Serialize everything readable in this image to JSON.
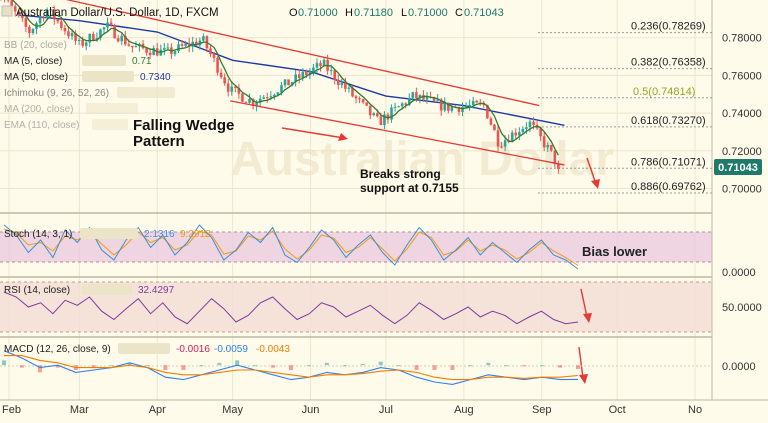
{
  "header": {
    "symbol_title": "Australian Dollar/U.S. Dollar, 1D, FXCM",
    "ohlc": {
      "O": "0.71000",
      "H": "0.71180",
      "L": "0.71000",
      "C": "0.71043"
    },
    "last_price": "0.71043"
  },
  "indicators": [
    {
      "label": "BB (20, close)",
      "value": ""
    },
    {
      "label": "MA (5, close)",
      "value": "0.71"
    },
    {
      "label": "MA (50, close)",
      "value": "0.7340"
    },
    {
      "label": "Ichimoku (9, 26, 52, 26)",
      "value": ""
    },
    {
      "label": "MA (200, close)",
      "value": ""
    },
    {
      "label": "EMA (110, close)",
      "value": ""
    }
  ],
  "annotations": {
    "pattern": [
      "Falling Wedge",
      "Pattern"
    ],
    "breakout": [
      "Breaks strong",
      "support at 0.7155"
    ],
    "bias": "Bias lower"
  },
  "watermark": "Australian Dollar",
  "stoch": {
    "label": "Stoch (14, 3, 1)",
    "k": "2.1316",
    "d": "9.2912",
    "axis": "0.0000"
  },
  "rsi": {
    "label": "RSI (14, close)",
    "value": "32.4297",
    "axis": "50.0000"
  },
  "macd": {
    "label": "MACD (12, 26, close, 9)",
    "hist": "-0.0016",
    "macd": "-0.0059",
    "signal": "-0.0043",
    "axis": "0.0000"
  },
  "colors": {
    "up": "#26a69a",
    "down": "#ef5350",
    "wedge": "#e53935",
    "ma5": "#2e7d32",
    "ma50": "#1e3aa8",
    "stoch_k": "#3b8fd6",
    "stoch_d": "#f39c12",
    "rsi": "#7e3b9e",
    "macd": "#2f80ed",
    "signal": "#f57c00",
    "fib": "#999999"
  },
  "chart_data": [
    {
      "type": "candlestick",
      "title": "Australian Dollar/U.S. Dollar, 1D, FXCM",
      "x_ticks": [
        "Feb",
        "Mar",
        "Apr",
        "May",
        "Jun",
        "Jul",
        "Aug",
        "Sep",
        "Oct",
        "No"
      ],
      "y_ticks": [
        "0.78000",
        "0.76000",
        "0.74000",
        "0.72000",
        "0.70000"
      ],
      "y_tick_values": [
        0.78,
        0.76,
        0.74,
        0.72,
        0.7
      ],
      "ylim": [
        0.687,
        0.8
      ],
      "price_path": [
        {
          "x": "2018-01-26",
          "y": 0.808
        },
        {
          "x": "2018-02-09",
          "y": 0.783
        },
        {
          "x": "2018-02-16",
          "y": 0.795
        },
        {
          "x": "2018-03-01",
          "y": 0.776
        },
        {
          "x": "2018-03-12",
          "y": 0.786
        },
        {
          "x": "2018-03-22",
          "y": 0.775
        },
        {
          "x": "2018-04-05",
          "y": 0.772
        },
        {
          "x": "2018-04-19",
          "y": 0.779
        },
        {
          "x": "2018-04-30",
          "y": 0.752
        },
        {
          "x": "2018-05-09",
          "y": 0.746
        },
        {
          "x": "2018-05-22",
          "y": 0.755
        },
        {
          "x": "2018-06-06",
          "y": 0.766
        },
        {
          "x": "2018-06-15",
          "y": 0.753
        },
        {
          "x": "2018-06-28",
          "y": 0.735
        },
        {
          "x": "2018-07-05",
          "y": 0.742
        },
        {
          "x": "2018-07-12",
          "y": 0.749
        },
        {
          "x": "2018-07-25",
          "y": 0.743
        },
        {
          "x": "2018-08-09",
          "y": 0.744
        },
        {
          "x": "2018-08-15",
          "y": 0.724
        },
        {
          "x": "2018-08-27",
          "y": 0.735
        },
        {
          "x": "2018-09-04",
          "y": 0.72
        },
        {
          "x": "2018-09-08",
          "y": 0.7104
        }
      ],
      "fibonacci": [
        {
          "label": "0.236(0.78269)",
          "value": 0.78269
        },
        {
          "label": "0.382(0.76358)",
          "value": 0.76358
        },
        {
          "label": "0.5(0.74814)",
          "value": 0.74814
        },
        {
          "label": "0.618(0.73270)",
          "value": 0.7327
        },
        {
          "label": "0.786(0.71071)",
          "value": 0.71071
        },
        {
          "label": "0.886(0.69762)",
          "value": 0.69762
        }
      ],
      "wedge_upper": [
        {
          "x": "2018-01-29",
          "y": 0.808
        },
        {
          "x": "2018-08-31",
          "y": 0.744
        }
      ],
      "wedge_lower": [
        {
          "x": "2018-04-30",
          "y": 0.7465
        },
        {
          "x": "2018-09-10",
          "y": 0.7125
        }
      ],
      "ma50_path": [
        {
          "x": "2018-02-05",
          "y": 0.792
        },
        {
          "x": "2018-03-01",
          "y": 0.789
        },
        {
          "x": "2018-04-01",
          "y": 0.783
        },
        {
          "x": "2018-05-01",
          "y": 0.768
        },
        {
          "x": "2018-06-01",
          "y": 0.762
        },
        {
          "x": "2018-07-01",
          "y": 0.749
        },
        {
          "x": "2018-08-01",
          "y": 0.744
        },
        {
          "x": "2018-09-10",
          "y": 0.7335
        }
      ]
    },
    {
      "type": "line",
      "title": "Stoch (14, 3, 1)",
      "y_ticks": [
        "0.0000"
      ],
      "ylim": [
        0,
        100
      ],
      "series": [
        {
          "name": "%K",
          "values": [
            90,
            70,
            35,
            60,
            25,
            80,
            55,
            85,
            40,
            20,
            60,
            85,
            45,
            70,
            30,
            55,
            90,
            65,
            20,
            40,
            75,
            55,
            85,
            30,
            15,
            45,
            80,
            60,
            25,
            50,
            70,
            35,
            10,
            50,
            85,
            60,
            20,
            40,
            65,
            30,
            55,
            35,
            15,
            40,
            60,
            30,
            20,
            2
          ]
        },
        {
          "name": "%D",
          "values": [
            82,
            74,
            50,
            55,
            38,
            68,
            60,
            76,
            52,
            30,
            50,
            76,
            55,
            65,
            40,
            50,
            78,
            70,
            32,
            38,
            68,
            60,
            78,
            42,
            22,
            40,
            70,
            64,
            35,
            45,
            65,
            42,
            18,
            42,
            76,
            65,
            30,
            38,
            60,
            38,
            50,
            40,
            22,
            35,
            55,
            38,
            25,
            9
          ]
        }
      ]
    },
    {
      "type": "line",
      "title": "RSI (14, close)",
      "y_ticks": [
        "50.0000"
      ],
      "ylim": [
        20,
        80
      ],
      "series": [
        {
          "name": "RSI",
          "values": [
            68,
            62,
            50,
            55,
            42,
            58,
            52,
            62,
            45,
            35,
            48,
            60,
            42,
            55,
            38,
            30,
            45,
            60,
            48,
            32,
            40,
            55,
            62,
            48,
            35,
            42,
            55,
            50,
            38,
            45,
            52,
            40,
            30,
            40,
            55,
            46,
            35,
            42,
            50,
            38,
            45,
            40,
            30,
            38,
            45,
            35,
            30,
            32
          ]
        }
      ]
    },
    {
      "type": "bar",
      "title": "MACD (12, 26, close, 9)",
      "y_ticks": [
        "0.0000"
      ],
      "ylim": [
        -0.012,
        0.008
      ],
      "series": [
        {
          "name": "MACD",
          "values": [
            0.006,
            0.003,
            -0.001,
            0.0,
            -0.003,
            -0.002,
            -0.001,
            0.001,
            -0.001,
            -0.005,
            -0.006,
            -0.004,
            -0.002,
            0.0,
            -0.002,
            -0.004,
            -0.006,
            -0.005,
            -0.003,
            -0.004,
            -0.003,
            -0.001,
            -0.002,
            -0.005,
            -0.007,
            -0.008,
            -0.006,
            -0.004,
            -0.005,
            -0.006,
            -0.005,
            -0.006,
            -0.0059
          ]
        },
        {
          "name": "Signal",
          "values": [
            0.004,
            0.004,
            0.002,
            0.001,
            -0.001,
            -0.001,
            -0.001,
            0.0,
            -0.001,
            -0.003,
            -0.004,
            -0.004,
            -0.003,
            -0.002,
            -0.002,
            -0.003,
            -0.004,
            -0.005,
            -0.004,
            -0.004,
            -0.0035,
            -0.0025,
            -0.002,
            -0.003,
            -0.005,
            -0.006,
            -0.006,
            -0.005,
            -0.005,
            -0.0055,
            -0.005,
            -0.005,
            -0.0043
          ]
        },
        {
          "name": "Histogram",
          "values": [
            0.002,
            -0.001,
            -0.003,
            -0.001,
            -0.002,
            -0.001,
            0.0,
            0.001,
            0.0,
            -0.002,
            -0.002,
            0.0,
            0.001,
            0.002,
            0.0,
            -0.001,
            -0.002,
            0.0,
            0.001,
            0.0,
            0.0005,
            0.0015,
            0.0,
            -0.002,
            -0.002,
            -0.002,
            0.0,
            0.001,
            0.0,
            -0.0005,
            0.0,
            -0.001,
            -0.0016
          ]
        }
      ]
    }
  ]
}
